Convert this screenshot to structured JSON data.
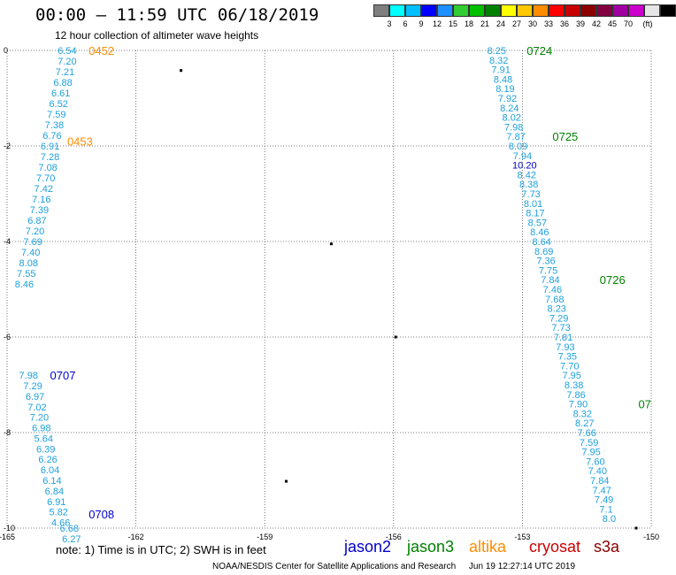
{
  "title": "00:00 – 11:59 UTC 06/18/2019",
  "subtitle": "12 hour collection of altimeter wave heights",
  "color_scale": {
    "colors": [
      "#7f7f7f",
      "#00ffff",
      "#00bfff",
      "#0000ff",
      "#1e90ff",
      "#32cd32",
      "#00c000",
      "#008000",
      "#ffff00",
      "#ffc800",
      "#ff8c00",
      "#ff0000",
      "#c80000",
      "#8b0000",
      "#800040",
      "#a000a0",
      "#cc00cc",
      "#e6e6e6",
      "#000000"
    ],
    "labels": [
      "3",
      "6",
      "9",
      "12",
      "15",
      "18",
      "21",
      "24",
      "27",
      "30",
      "33",
      "36",
      "39",
      "42",
      "45",
      "70",
      "(ft)"
    ]
  },
  "axes": {
    "x_labels": [
      "-165",
      "-162",
      "-159",
      "-156",
      "-153",
      "-150"
    ],
    "y_labels": [
      "0",
      "-2",
      "-4",
      "-6",
      "-8",
      "-10"
    ],
    "xlim": [
      -165,
      -150
    ],
    "ylim": [
      -10,
      0
    ]
  },
  "tracks": [
    {
      "satellite": "altika",
      "color": "#ff8c00",
      "text_color": "#1ea0dc",
      "label_times": [
        {
          "time": "0452",
          "lon": -163.1,
          "lat": 0.0
        },
        {
          "time": "0453",
          "lon": -163.6,
          "lat": -1.9
        }
      ],
      "points": [
        {
          "lon": -163.6,
          "lat": 0.0,
          "v": "6.54"
        },
        {
          "lon": -163.6,
          "lat": -0.22,
          "v": "7.20"
        },
        {
          "lon": -163.65,
          "lat": -0.44,
          "v": "7.21"
        },
        {
          "lon": -163.7,
          "lat": -0.67,
          "v": "6.88"
        },
        {
          "lon": -163.75,
          "lat": -0.89,
          "v": "6.61"
        },
        {
          "lon": -163.8,
          "lat": -1.11,
          "v": "6.52"
        },
        {
          "lon": -163.85,
          "lat": -1.33,
          "v": "7.59"
        },
        {
          "lon": -163.9,
          "lat": -1.56,
          "v": "7.38"
        },
        {
          "lon": -163.95,
          "lat": -1.78,
          "v": "6.76"
        },
        {
          "lon": -164.0,
          "lat": -2.0,
          "v": "6.91"
        },
        {
          "lon": -164.0,
          "lat": -2.22,
          "v": "7.28"
        },
        {
          "lon": -164.05,
          "lat": -2.44,
          "v": "7.08"
        },
        {
          "lon": -164.1,
          "lat": -2.67,
          "v": "7.70"
        },
        {
          "lon": -164.15,
          "lat": -2.89,
          "v": "7.42"
        },
        {
          "lon": -164.2,
          "lat": -3.11,
          "v": "7.16"
        },
        {
          "lon": -164.25,
          "lat": -3.33,
          "v": "7.39"
        },
        {
          "lon": -164.3,
          "lat": -3.56,
          "v": "6.87"
        },
        {
          "lon": -164.35,
          "lat": -3.78,
          "v": "7.20"
        },
        {
          "lon": -164.4,
          "lat": -4.0,
          "v": "7.69"
        },
        {
          "lon": -164.45,
          "lat": -4.22,
          "v": "7.40"
        },
        {
          "lon": -164.5,
          "lat": -4.44,
          "v": "8.08"
        },
        {
          "lon": -164.55,
          "lat": -4.67,
          "v": "7.55"
        },
        {
          "lon": -164.6,
          "lat": -4.89,
          "v": "8.46"
        }
      ]
    },
    {
      "satellite": "jason2",
      "color": "#0000cd",
      "text_color": "#1ea0dc",
      "label_times": [
        {
          "time": "0707",
          "lon": -164.0,
          "lat": -6.8
        },
        {
          "time": "0708",
          "lon": -163.1,
          "lat": -9.7
        }
      ],
      "points": [
        {
          "lon": -164.5,
          "lat": -6.8,
          "v": "7.98"
        },
        {
          "lon": -164.4,
          "lat": -7.02,
          "v": "7.29"
        },
        {
          "lon": -164.35,
          "lat": -7.24,
          "v": "6.97"
        },
        {
          "lon": -164.3,
          "lat": -7.46,
          "v": "7.02"
        },
        {
          "lon": -164.25,
          "lat": -7.68,
          "v": "7.20"
        },
        {
          "lon": -164.2,
          "lat": -7.9,
          "v": "6.98"
        },
        {
          "lon": -164.15,
          "lat": -8.12,
          "v": "5.64"
        },
        {
          "lon": -164.1,
          "lat": -8.34,
          "v": "6.39"
        },
        {
          "lon": -164.05,
          "lat": -8.56,
          "v": "6.26"
        },
        {
          "lon": -164.0,
          "lat": -8.78,
          "v": "6.04"
        },
        {
          "lon": -163.95,
          "lat": -9.0,
          "v": "6.14"
        },
        {
          "lon": -163.9,
          "lat": -9.22,
          "v": "6.84"
        },
        {
          "lon": -163.85,
          "lat": -9.44,
          "v": "6.91"
        },
        {
          "lon": -163.8,
          "lat": -9.66,
          "v": "5.82"
        },
        {
          "lon": -163.75,
          "lat": -9.88,
          "v": "4.66"
        },
        {
          "lon": -163.55,
          "lat": -10.0,
          "v": "6.68"
        },
        {
          "lon": -163.5,
          "lat": -10.22,
          "v": "6.27"
        }
      ]
    },
    {
      "satellite": "jason3",
      "color": "#008000",
      "text_color": "#1ea0dc",
      "label_times": [
        {
          "time": "0724",
          "lon": -152.9,
          "lat": 0.0
        },
        {
          "time": "0725",
          "lon": -152.3,
          "lat": -1.8
        },
        {
          "time": "0726",
          "lon": -151.2,
          "lat": -4.8
        },
        {
          "time": "07",
          "lon": -150.3,
          "lat": -7.4
        }
      ],
      "points": [
        {
          "lon": -153.6,
          "lat": 0.0,
          "v": "8.25"
        },
        {
          "lon": -153.55,
          "lat": -0.2,
          "v": "8.32"
        },
        {
          "lon": -153.5,
          "lat": -0.4,
          "v": "7.91"
        },
        {
          "lon": -153.45,
          "lat": -0.6,
          "v": "8.48"
        },
        {
          "lon": -153.4,
          "lat": -0.8,
          "v": "8.19"
        },
        {
          "lon": -153.35,
          "lat": -1.0,
          "v": "7.92"
        },
        {
          "lon": -153.3,
          "lat": -1.2,
          "v": "8.24"
        },
        {
          "lon": -153.25,
          "lat": -1.4,
          "v": "8.02"
        },
        {
          "lon": -153.2,
          "lat": -1.6,
          "v": "7.98"
        },
        {
          "lon": -153.15,
          "lat": -1.8,
          "v": "7.87"
        },
        {
          "lon": -153.1,
          "lat": -2.0,
          "v": "8.09"
        },
        {
          "lon": -153.0,
          "lat": -2.2,
          "v": "7.94"
        },
        {
          "lon": -152.95,
          "lat": -2.4,
          "v": "10.20",
          "color": "#0000cd"
        },
        {
          "lon": -152.9,
          "lat": -2.6,
          "v": "8.42"
        },
        {
          "lon": -152.85,
          "lat": -2.8,
          "v": "8.38"
        },
        {
          "lon": -152.8,
          "lat": -3.0,
          "v": "7.73"
        },
        {
          "lon": -152.75,
          "lat": -3.2,
          "v": "8.01"
        },
        {
          "lon": -152.7,
          "lat": -3.4,
          "v": "8.17"
        },
        {
          "lon": -152.65,
          "lat": -3.6,
          "v": "8.57"
        },
        {
          "lon": -152.6,
          "lat": -3.8,
          "v": "8.46"
        },
        {
          "lon": -152.55,
          "lat": -4.0,
          "v": "8.64"
        },
        {
          "lon": -152.5,
          "lat": -4.2,
          "v": "8.69"
        },
        {
          "lon": -152.45,
          "lat": -4.4,
          "v": "7.36"
        },
        {
          "lon": -152.4,
          "lat": -4.6,
          "v": "7.75"
        },
        {
          "lon": -152.35,
          "lat": -4.8,
          "v": "7.84"
        },
        {
          "lon": -152.3,
          "lat": -5.0,
          "v": "7.46"
        },
        {
          "lon": -152.25,
          "lat": -5.2,
          "v": "7.68"
        },
        {
          "lon": -152.2,
          "lat": -5.4,
          "v": "8.23"
        },
        {
          "lon": -152.15,
          "lat": -5.6,
          "v": "7.29"
        },
        {
          "lon": -152.1,
          "lat": -5.8,
          "v": "7.73"
        },
        {
          "lon": -152.05,
          "lat": -6.0,
          "v": "7.81"
        },
        {
          "lon": -152.0,
          "lat": -6.2,
          "v": "7.93"
        },
        {
          "lon": -151.95,
          "lat": -6.4,
          "v": "7.35"
        },
        {
          "lon": -151.9,
          "lat": -6.6,
          "v": "7.70"
        },
        {
          "lon": -151.85,
          "lat": -6.8,
          "v": "7.95"
        },
        {
          "lon": -151.8,
          "lat": -7.0,
          "v": "8.38"
        },
        {
          "lon": -151.75,
          "lat": -7.2,
          "v": "7.86"
        },
        {
          "lon": -151.7,
          "lat": -7.4,
          "v": "7.90"
        },
        {
          "lon": -151.6,
          "lat": -7.6,
          "v": "8.32"
        },
        {
          "lon": -151.55,
          "lat": -7.8,
          "v": "8.27"
        },
        {
          "lon": -151.5,
          "lat": -8.0,
          "v": "7.66"
        },
        {
          "lon": -151.45,
          "lat": -8.2,
          "v": "7.59"
        },
        {
          "lon": -151.4,
          "lat": -8.4,
          "v": "7.95"
        },
        {
          "lon": -151.3,
          "lat": -8.6,
          "v": "7.60"
        },
        {
          "lon": -151.25,
          "lat": -8.8,
          "v": "7.40"
        },
        {
          "lon": -151.2,
          "lat": -9.0,
          "v": "7.84"
        },
        {
          "lon": -151.15,
          "lat": -9.2,
          "v": "7.47"
        },
        {
          "lon": -151.1,
          "lat": -9.4,
          "v": "7.49"
        },
        {
          "lon": -151.05,
          "lat": -9.6,
          "v": "7.1"
        },
        {
          "lon": -150.98,
          "lat": -9.8,
          "v": "8.0"
        }
      ]
    }
  ],
  "islands": [
    {
      "lon": -160.95,
      "lat": -0.42
    },
    {
      "lon": -157.45,
      "lat": -4.05
    },
    {
      "lon": -155.95,
      "lat": -6.0
    },
    {
      "lon": -158.5,
      "lat": -9.02
    },
    {
      "lon": -150.35,
      "lat": -10.0
    }
  ],
  "note": "note:  1) Time is in UTC; 2) SWH is in feet",
  "legend": [
    {
      "name": "jason2",
      "color": "#0000cd"
    },
    {
      "name": "jason3",
      "color": "#008000"
    },
    {
      "name": "altika",
      "color": "#ff8c00"
    },
    {
      "name": "cryosat",
      "color": "#cc0000"
    },
    {
      "name": "s3a",
      "color": "#8b0000"
    }
  ],
  "footer": {
    "agency": "NOAA/NESDIS Center for Satellite Applications and Research",
    "timestamp": "Jun 19 12:27:14 UTC 2019"
  }
}
